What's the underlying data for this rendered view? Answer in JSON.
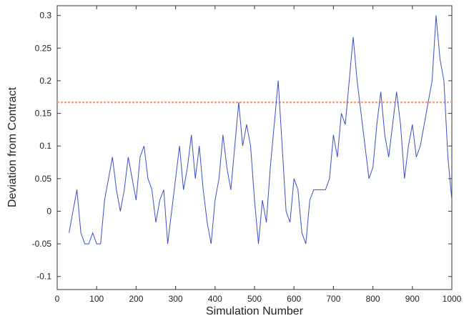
{
  "chart_data": {
    "type": "line",
    "x_label": "Simulation Number",
    "y_label": "Deviation from Contract",
    "xlim": [
      0,
      1000
    ],
    "ylim": [
      -0.12,
      0.315
    ],
    "xticks": [
      0,
      100,
      200,
      300,
      400,
      500,
      600,
      700,
      800,
      900,
      1000
    ],
    "yticks": [
      -0.1,
      -0.05,
      0,
      0.05,
      0.1,
      0.15,
      0.2,
      0.25,
      0.3
    ],
    "reference_line": {
      "value": 0.167,
      "color": "#f4a582"
    },
    "series": [
      {
        "color": "#3b4fc4",
        "x": [
          30,
          40,
          50,
          60,
          70,
          80,
          90,
          100,
          110,
          120,
          130,
          140,
          150,
          160,
          170,
          180,
          190,
          200,
          210,
          220,
          230,
          240,
          250,
          260,
          270,
          280,
          290,
          300,
          310,
          320,
          330,
          340,
          350,
          360,
          370,
          380,
          390,
          400,
          410,
          420,
          430,
          440,
          450,
          460,
          470,
          480,
          490,
          500,
          510,
          520,
          530,
          540,
          550,
          560,
          570,
          580,
          590,
          600,
          610,
          620,
          630,
          640,
          650,
          660,
          670,
          680,
          690,
          700,
          710,
          720,
          730,
          740,
          750,
          760,
          770,
          780,
          790,
          800,
          810,
          820,
          830,
          840,
          850,
          860,
          870,
          880,
          890,
          900,
          910,
          920,
          930,
          940,
          950,
          960,
          970,
          980,
          990,
          1000
        ],
        "values": [
          -0.033,
          0,
          0.033,
          -0.033,
          -0.05,
          -0.05,
          -0.033,
          -0.05,
          -0.05,
          0.017,
          0.05,
          0.083,
          0.033,
          0,
          0.033,
          0.083,
          0.05,
          0.017,
          0.083,
          0.1,
          0.05,
          0.033,
          -0.017,
          0.017,
          0.033,
          -0.05,
          0,
          0.05,
          0.1,
          0.033,
          0.067,
          0.117,
          0.05,
          0.1,
          0.033,
          -0.017,
          -0.05,
          0.017,
          0.05,
          0.117,
          0.067,
          0.033,
          0.1,
          0.167,
          0.1,
          0.133,
          0.1,
          0.017,
          -0.05,
          0.017,
          -0.017,
          0.067,
          0.133,
          0.2,
          0.1,
          0,
          -0.017,
          0.05,
          0.033,
          -0.033,
          -0.05,
          0.017,
          0.033,
          0.033,
          0.033,
          0.033,
          0.05,
          0.117,
          0.083,
          0.15,
          0.133,
          0.2,
          0.267,
          0.2,
          0.15,
          0.1,
          0.05,
          0.067,
          0.133,
          0.183,
          0.117,
          0.083,
          0.133,
          0.183,
          0.133,
          0.05,
          0.1,
          0.133,
          0.083,
          0.1,
          0.133,
          0.167,
          0.2,
          0.3,
          0.233,
          0.2,
          0.083,
          0.017
        ]
      }
    ]
  }
}
